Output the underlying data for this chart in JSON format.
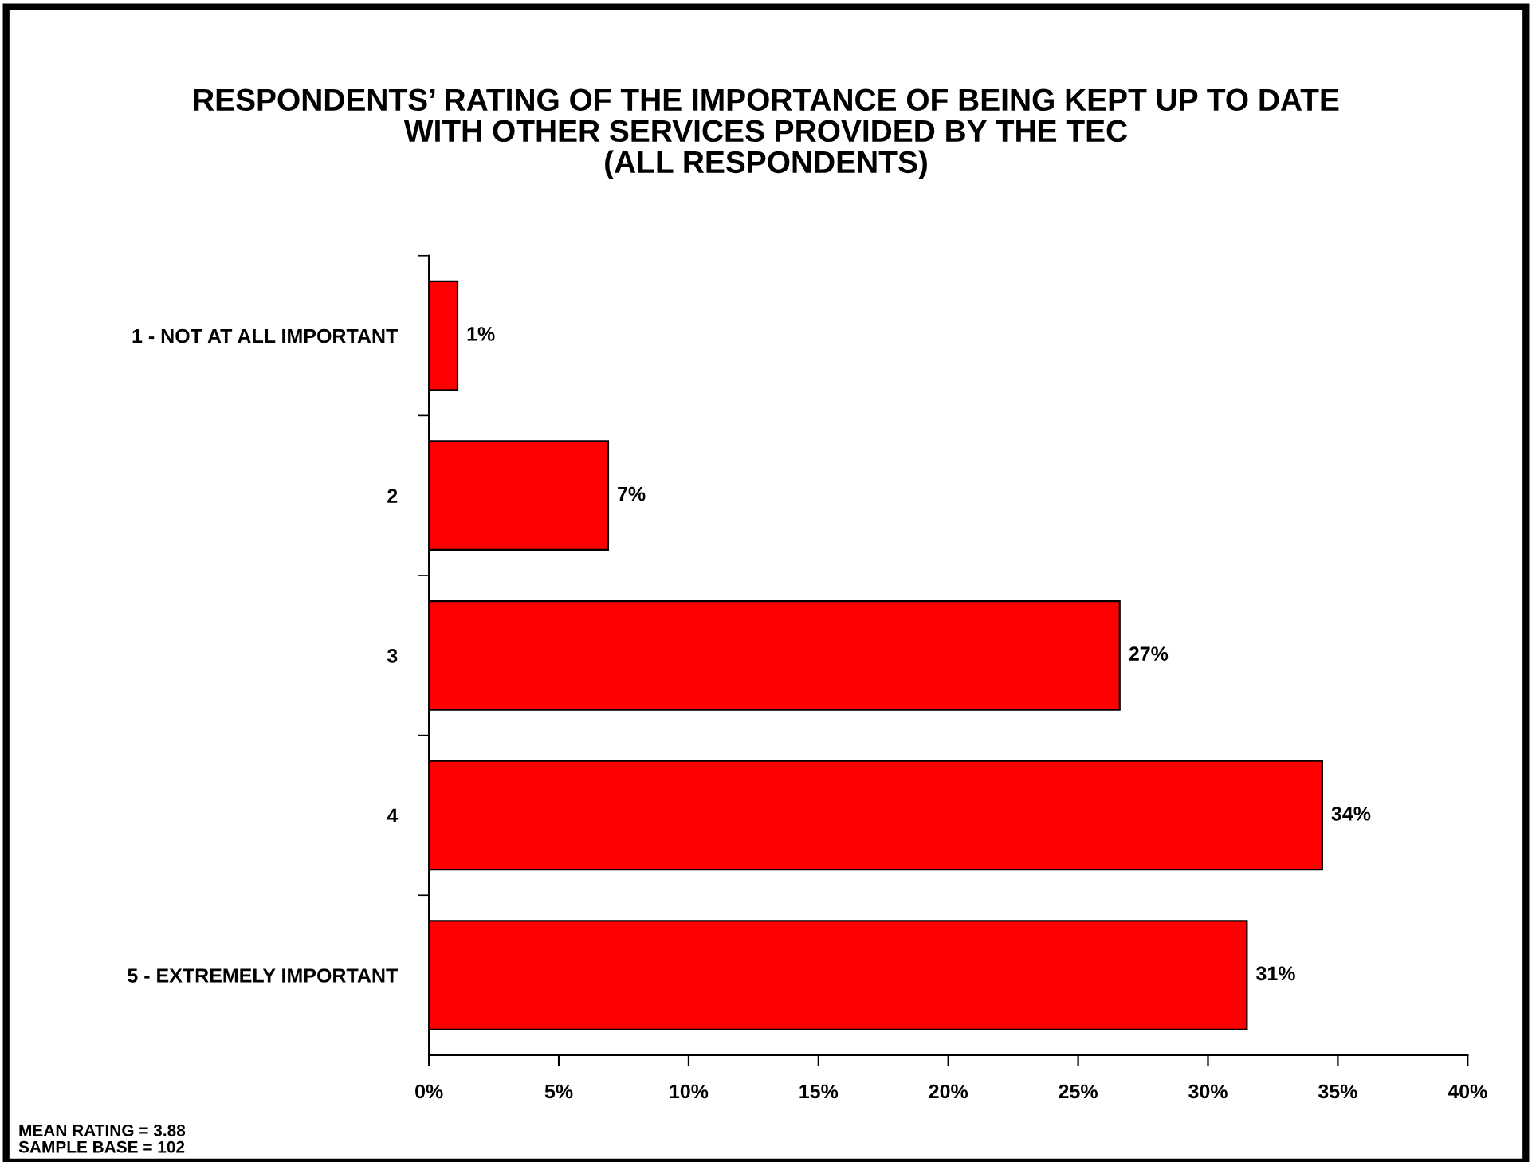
{
  "chart_data": {
    "type": "bar",
    "orientation": "horizontal",
    "title": "RESPONDENTS’ RATING OF THE IMPORTANCE OF BEING KEPT UP TO DATE\nWITH OTHER SERVICES PROVIDED BY THE TEC\n(ALL RESPONDENTS)",
    "categories": [
      "1 - NOT AT ALL IMPORTANT",
      "2",
      "3",
      "4",
      "5 - EXTREMELY IMPORTANT"
    ],
    "values": [
      1.1,
      6.9,
      26.6,
      34.4,
      31.5
    ],
    "value_labels": [
      "1%",
      "7%",
      "27%",
      "34%",
      "31%"
    ],
    "color": "#ff0000",
    "xlim": [
      0,
      40
    ],
    "xticks": [
      {
        "value": 0,
        "label": "0%"
      },
      {
        "value": 5,
        "label": "5%"
      },
      {
        "value": 10,
        "label": "10%"
      },
      {
        "value": 15,
        "label": "15%"
      },
      {
        "value": 20,
        "label": "20%"
      },
      {
        "value": 25,
        "label": "25%"
      },
      {
        "value": 30,
        "label": "30%"
      },
      {
        "value": 35,
        "label": "35%"
      },
      {
        "value": 40,
        "label": "40%"
      }
    ],
    "grid": false,
    "legend": false,
    "annotations": [
      "MEAN RATING = 3.88\nSAMPLE BASE = 102"
    ]
  }
}
